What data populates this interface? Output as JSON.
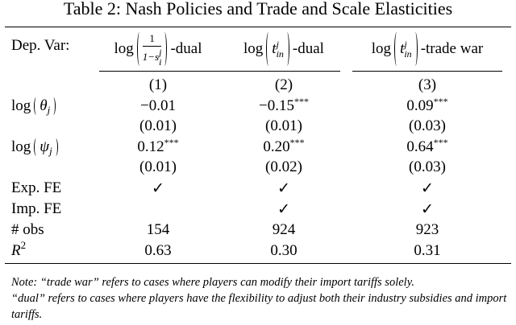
{
  "title": "Table 2: Nash Policies and Trade and Scale Elasticities",
  "header": {
    "label": "Dep. Var:",
    "columns": [
      {
        "log": "log",
        "num": "1",
        "den": "1−s",
        "sup": "j",
        "sub": "i",
        "suffix": "-dual"
      },
      {
        "log": "log",
        "var": "t",
        "sup": "j",
        "sub": "in",
        "suffix": "-dual"
      },
      {
        "log": "log",
        "var": "t",
        "sup": "j",
        "sub": "in",
        "suffix": "-trade war"
      }
    ]
  },
  "column_numbers": [
    "(1)",
    "(2)",
    "(3)"
  ],
  "rows": [
    {
      "label": {
        "log": "log",
        "var": "θ",
        "sub": "j"
      },
      "cells": [
        {
          "value": "−0.01"
        },
        {
          "value": "−0.15",
          "stars": "***"
        },
        {
          "value": "0.09",
          "stars": "***"
        }
      ]
    },
    {
      "cells": [
        {
          "value": "(0.01)"
        },
        {
          "value": "(0.01)"
        },
        {
          "value": "(0.03)"
        }
      ]
    },
    {
      "label": {
        "log": "log",
        "var": "ψ",
        "sub": "j"
      },
      "cells": [
        {
          "value": "0.12",
          "stars": "***"
        },
        {
          "value": "0.20",
          "stars": "***"
        },
        {
          "value": "0.64",
          "stars": "***"
        }
      ]
    },
    {
      "cells": [
        {
          "value": "(0.01)"
        },
        {
          "value": "(0.02)"
        },
        {
          "value": "(0.03)"
        }
      ]
    },
    {
      "label": {
        "text": "Exp. FE"
      },
      "cells": [
        {
          "value": "✓"
        },
        {
          "value": "✓"
        },
        {
          "value": "✓"
        }
      ]
    },
    {
      "label": {
        "text": "Imp. FE"
      },
      "cells": [
        null,
        {
          "value": "✓"
        },
        {
          "value": "✓"
        }
      ]
    },
    {
      "label": {
        "text": "# obs"
      },
      "cells": [
        {
          "value": "154"
        },
        {
          "value": "924"
        },
        {
          "value": "923"
        }
      ]
    },
    {
      "label": {
        "var": "R",
        "sup": "2"
      },
      "cells": [
        {
          "value": "0.63"
        },
        {
          "value": "0.30"
        },
        {
          "value": "0.31"
        }
      ]
    }
  ],
  "note": [
    "Note: “trade war” refers to cases where players can modify their import tariffs solely.",
    "“dual” refers to cases where players have the flexibility to adjust both their industry subsidies and import tariffs."
  ]
}
